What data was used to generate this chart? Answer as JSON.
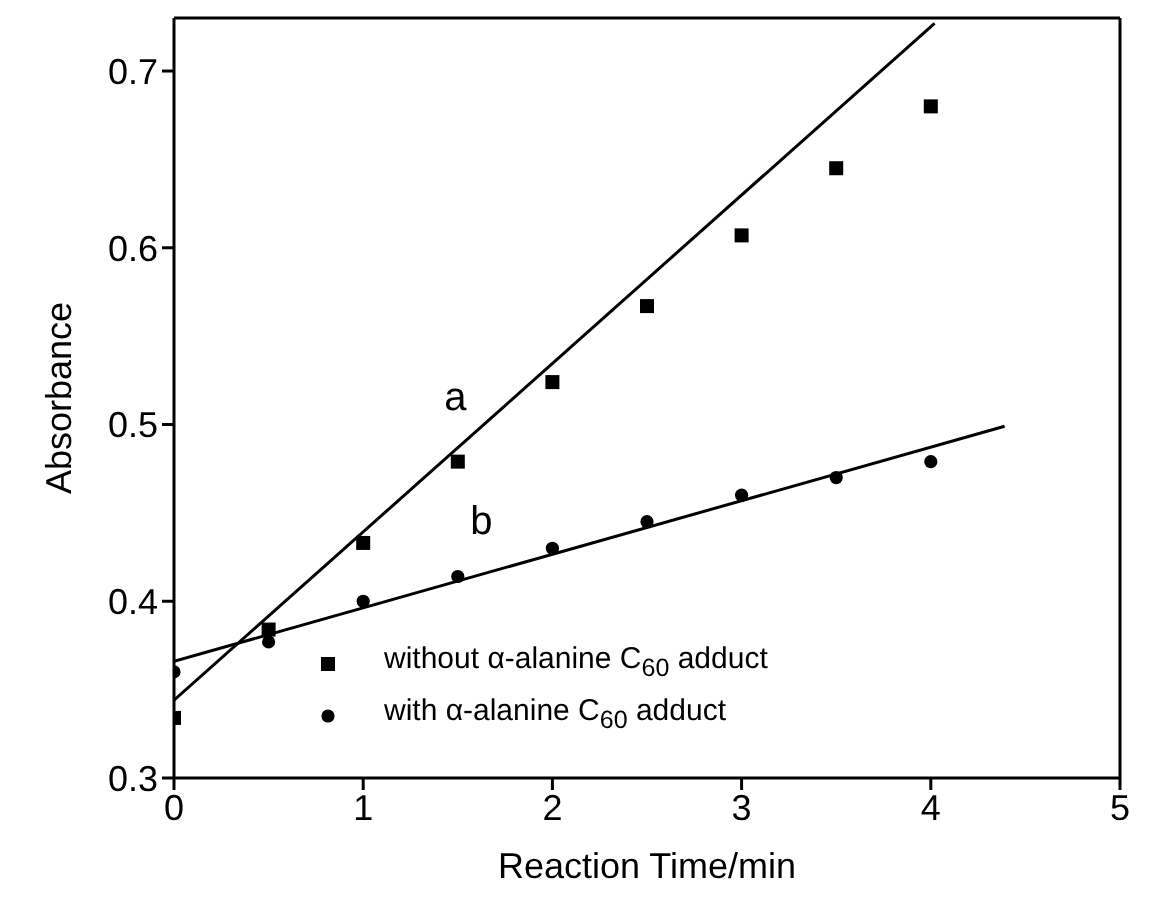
{
  "chart_data": {
    "type": "scatter",
    "xlabel": "Reaction Time/min",
    "ylabel": "Absorbance",
    "xlim": [
      0,
      5
    ],
    "ylim": [
      0.3,
      0.73
    ],
    "xticks": [
      0,
      1,
      2,
      3,
      4,
      5
    ],
    "yticks": [
      0.3,
      0.4,
      0.5,
      0.6,
      0.7
    ],
    "grid": false,
    "legend": "bottom",
    "series": [
      {
        "name": "without α-alanine C$_{60}$ adduct",
        "type": "scatter",
        "marker": "square",
        "color": "#000000",
        "x": [
          0,
          0.5,
          1,
          1.5,
          2,
          2.5,
          3,
          3.5,
          4
        ],
        "values": [
          0.334,
          0.384,
          0.433,
          0.479,
          0.524,
          0.567,
          0.607,
          0.645,
          0.68
        ]
      },
      {
        "name": "with α-alanine C$_{60}$ adduct",
        "type": "scatter",
        "marker": "circle",
        "color": "#000000",
        "x": [
          0,
          0.5,
          1,
          1.5,
          2,
          2.5,
          3,
          3.5,
          4
        ],
        "values": [
          0.36,
          0.377,
          0.4,
          0.414,
          0.43,
          0.445,
          0.46,
          0.47,
          0.479
        ]
      },
      {
        "type": "line",
        "marker": "none",
        "color": "#000000",
        "x": [
          0,
          4.02
        ],
        "values": [
          0.344,
          0.727
        ]
      },
      {
        "type": "line",
        "marker": "none",
        "color": "#000000",
        "x": [
          0,
          4.39
        ],
        "values": [
          0.366,
          0.499
        ]
      }
    ],
    "annotations": [
      "a",
      "b"
    ]
  }
}
